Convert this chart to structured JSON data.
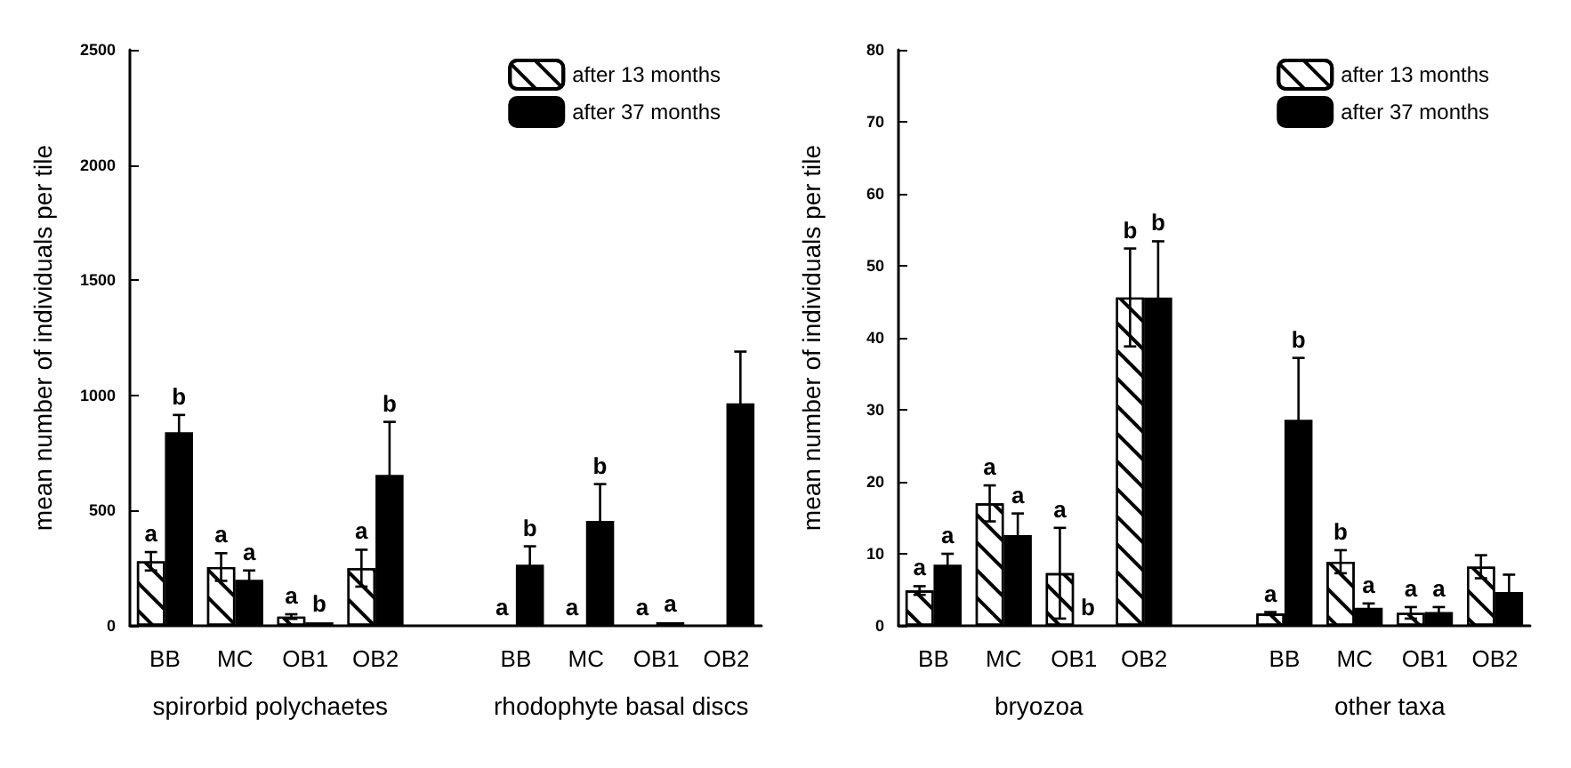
{
  "chart_data": [
    {
      "type": "bar",
      "categories": [
        "BB",
        "MC",
        "OB1",
        "OB2",
        null,
        "BB",
        "MC",
        "OB1",
        "OB2"
      ],
      "ylabel": "mean number of individuals per tile",
      "ylim": [
        0,
        2500
      ],
      "yticks": [
        0,
        500,
        1000,
        1500,
        2000,
        2500
      ],
      "grid": false,
      "legend": "top right",
      "annotations": [
        "spirorbid polychaetes",
        "rhodophyte basal discs"
      ],
      "series": [
        {
          "name": "after 13 months",
          "color": "#ffffff",
          "values": [
            280,
            255,
            40,
            250,
            null,
            0,
            0,
            0,
            0
          ],
          "errors": [
            40,
            60,
            10,
            80,
            null,
            null,
            null,
            null,
            null
          ],
          "value_labels": [
            "a",
            "a",
            "a",
            "a",
            null,
            "a",
            "a",
            "a",
            null
          ]
        },
        {
          "name": "after 37 months",
          "color": "#000000",
          "values": [
            840,
            200,
            15,
            655,
            null,
            265,
            455,
            15,
            965
          ],
          "errors": [
            75,
            40,
            null,
            230,
            null,
            80,
            160,
            null,
            225
          ],
          "value_labels": [
            "b",
            "a",
            "b",
            "b",
            null,
            "b",
            "b",
            "a",
            null
          ]
        }
      ]
    },
    {
      "type": "bar",
      "categories": [
        "BB",
        "MC",
        "OB1",
        "OB2",
        null,
        "BB",
        "MC",
        "OB1",
        "OB2"
      ],
      "ylabel": "mean number of individuals per tile",
      "ylim": [
        0,
        80
      ],
      "yticks": [
        0,
        10,
        20,
        30,
        40,
        50,
        60,
        70,
        80
      ],
      "grid": false,
      "legend": "top right",
      "annotations": [
        "bryozoa",
        "other taxa"
      ],
      "series": [
        {
          "name": "after 13 months",
          "color": "#ffffff",
          "values": [
            4.9,
            17,
            7.3,
            45.6,
            null,
            1.7,
            8.9,
            1.8,
            8.2
          ],
          "errors": [
            0.6,
            2.5,
            6.3,
            6.8,
            null,
            0.2,
            1.6,
            0.8,
            1.6
          ],
          "value_labels": [
            "a",
            "a",
            "a",
            "b",
            null,
            "a",
            "b",
            "a",
            null
          ]
        },
        {
          "name": "after 37 months",
          "color": "#000000",
          "values": [
            8.5,
            12.6,
            0,
            45.6,
            null,
            28.6,
            2.5,
            1.9,
            4.7
          ],
          "errors": [
            1.5,
            3,
            null,
            7.8,
            null,
            8.6,
            0.6,
            0.7,
            2.4
          ],
          "value_labels": [
            "a",
            "a",
            "b",
            "b",
            null,
            "b",
            "a",
            "a",
            null
          ]
        }
      ]
    }
  ]
}
